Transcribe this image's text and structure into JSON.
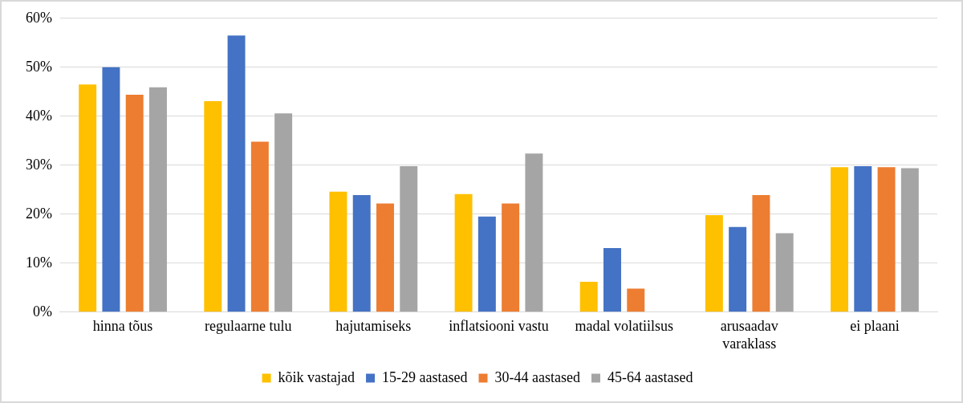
{
  "chart_data": {
    "type": "bar",
    "categories": [
      "hinna tõus",
      "regulaarne tulu",
      "hajutamiseks",
      "inflatsiooni vastu",
      "madal volatiilsus",
      "arusaadav varaklass",
      "ei plaani"
    ],
    "series": [
      {
        "name": "kõik vastajad",
        "color": "#ffc000",
        "values": [
          46.5,
          43.1,
          24.6,
          24.1,
          6.2,
          19.8,
          29.6
        ]
      },
      {
        "name": "15-29 aastased",
        "color": "#4472c4",
        "values": [
          50,
          56.5,
          23.9,
          19.5,
          13.1,
          17.4,
          29.8
        ]
      },
      {
        "name": "30-44 aastased",
        "color": "#ed7d31",
        "values": [
          44.4,
          34.8,
          22.2,
          22.2,
          4.8,
          23.9,
          29.6
        ]
      },
      {
        "name": "45-64 aastased",
        "color": "#a5a5a5",
        "values": [
          45.9,
          40.6,
          29.8,
          32.4,
          null,
          16.1,
          29.4
        ]
      }
    ],
    "ylim": [
      0,
      60
    ],
    "yticks": [
      {
        "value": 0,
        "label": "0%"
      },
      {
        "value": 10,
        "label": "10%"
      },
      {
        "value": 20,
        "label": "20%"
      },
      {
        "value": 30,
        "label": "30%"
      },
      {
        "value": 40,
        "label": "40%"
      },
      {
        "value": 50,
        "label": "50%"
      },
      {
        "value": 60,
        "label": "60%"
      }
    ],
    "grid": "y",
    "legend": "bottom"
  }
}
